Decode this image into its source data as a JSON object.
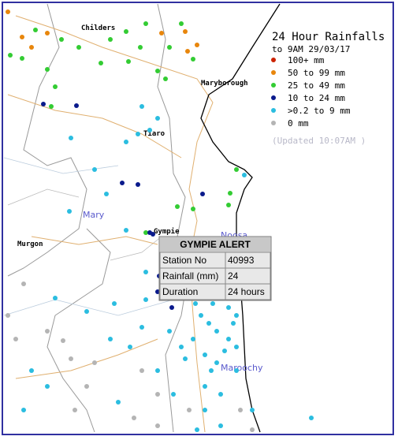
{
  "legend": {
    "title": "24 Hour Rainfalls",
    "subtitle": "to 9AM 29/03/17",
    "items": [
      {
        "label": "100+ mm",
        "color": "#cc2200"
      },
      {
        "label": "50  to 99 mm",
        "color": "#e8860c"
      },
      {
        "label": "25  to 49 mm",
        "color": "#33cc33"
      },
      {
        "label": "10  to 24 mm",
        "color": "#0a1a8c"
      },
      {
        "label": ">0.2 to 9 mm",
        "color": "#2bbde0"
      },
      {
        "label": "0 mm",
        "color": "#b4b4b4"
      }
    ],
    "updated": "(Updated 10:07AM  )"
  },
  "places": [
    {
      "label": "Childers"
    },
    {
      "label": "Maryborough"
    },
    {
      "label": "Tiaro"
    },
    {
      "label": "Mary"
    },
    {
      "label": "Gympie"
    },
    {
      "label": "Murgon"
    },
    {
      "label": "Noosa"
    },
    {
      "label": "Maroochy"
    }
  ],
  "alert": {
    "title": "GYMPIE ALERT",
    "rows": [
      [
        "Station No",
        "40993"
      ],
      [
        "Rainfall (mm)",
        "24"
      ],
      [
        "Duration",
        "24 hours"
      ]
    ]
  }
}
